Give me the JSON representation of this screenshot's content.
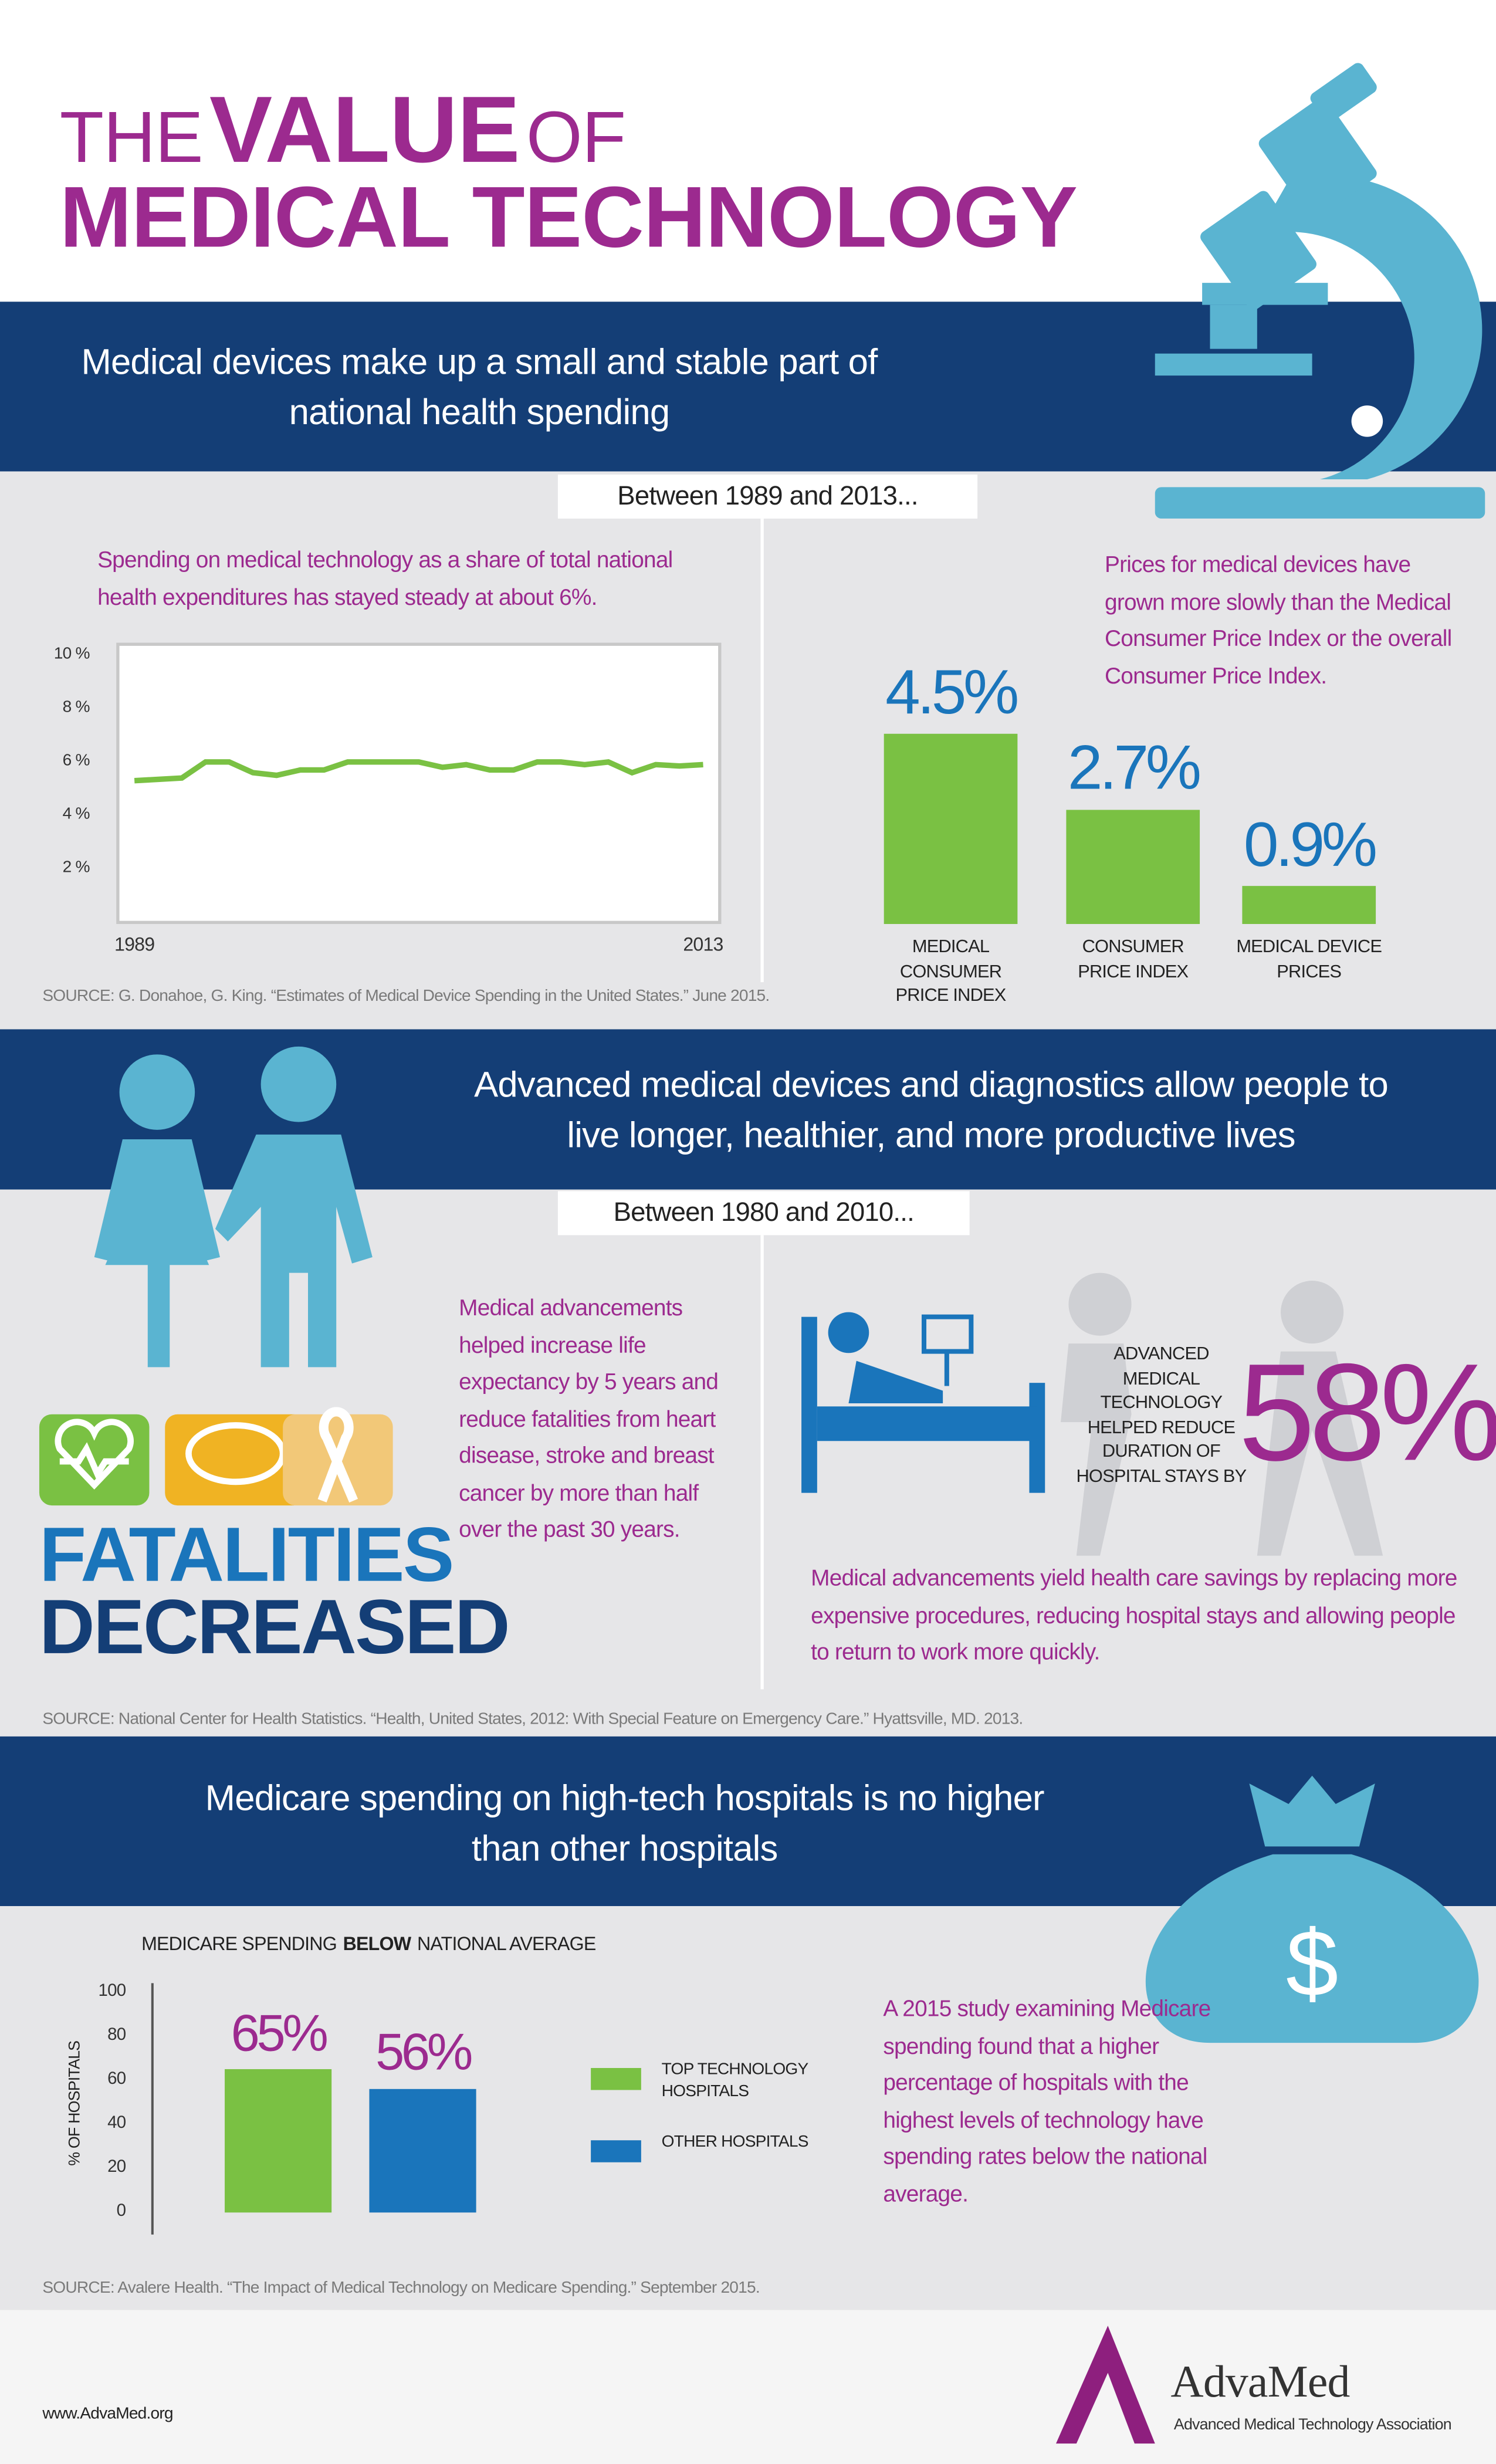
{
  "header": {
    "title_parts": [
      "THE",
      "VALUE",
      "OF"
    ],
    "title_line2": "MEDICAL TECHNOLOGY"
  },
  "sections": [
    {
      "heading": "Medical devices make up a small and stable part of national health spending",
      "period": "Between 1989 and 2013...",
      "left_text": "Spending on medical technology as a share of total national health expenditures has stayed steady at about 6%.",
      "right_text": "Prices for medical devices have grown more slowly than the Medical Consumer Price Index or the overall Consumer Price Index.",
      "source": "SOURCE: G. Donahoe, G. King. “Estimates of Medical Device Spending in the United States.” June 2015."
    },
    {
      "heading": "Advanced medical devices and diagnostics allow people to live longer, healthier, and more productive lives",
      "period": "Between 1980 and 2010...",
      "left_text": "Medical advancements helped increase life expectancy by 5 years and reduce fatalities from heart disease, stroke and breast cancer by more than half over the past 30 years.",
      "fatalities": "FATALITIES",
      "decreased": "DECREASED",
      "stat_text": "ADVANCED MEDICAL TECHNOLOGY HELPED REDUCE DURATION OF HOSPITAL STAYS BY",
      "stat_value": "58%",
      "right_text": "Medical advancements yield health care savings by replacing more expensive procedures, reducing hospital stays and allowing people to return to work more quickly.",
      "source": "SOURCE: National Center for Health Statistics. “Health, United States, 2012: With Special Feature on Emergency Care.” Hyattsville, MD. 2013."
    },
    {
      "heading": "Medicare spending on high-tech hospitals is no higher than other hospitals",
      "right_text": "A 2015 study examining Medicare spending found that a higher percentage of hospitals with the highest levels of technology have spending rates below the national average.",
      "source": "SOURCE: Avalere Health. “The Impact of Medical Technology on Medicare Spending.” September 2015."
    }
  ],
  "footer": {
    "url": "www.AdvaMed.org",
    "logo": "AdvaMed",
    "logo_sub": "Advanced Medical Technology Association"
  },
  "chart_data": [
    {
      "type": "line",
      "x": [
        1989,
        1990,
        1991,
        1992,
        1993,
        1994,
        1995,
        1996,
        1997,
        1998,
        1999,
        2000,
        2001,
        2002,
        2003,
        2004,
        2005,
        2006,
        2007,
        2008,
        2009,
        2010,
        2011,
        2012,
        2013
      ],
      "series": [
        {
          "color": "#7ac143",
          "values": [
            5.3,
            5.35,
            5.4,
            6.0,
            6.0,
            5.6,
            5.5,
            5.7,
            5.7,
            6.0,
            6.0,
            6.0,
            6.0,
            5.8,
            5.9,
            5.7,
            5.7,
            6.0,
            6.0,
            5.9,
            6.0,
            5.6,
            5.9,
            5.85,
            5.9
          ]
        }
      ],
      "xlim": [
        1988.3,
        2013.7
      ],
      "xticks": [
        1989,
        2013
      ],
      "ylim": [
        0,
        10.4
      ],
      "yticks": [
        {
          "value": 2,
          "label": "2 %"
        },
        {
          "value": 4,
          "label": "4 %"
        },
        {
          "value": 6,
          "label": "6 %"
        },
        {
          "value": 8,
          "label": "8 %"
        },
        {
          "value": 10,
          "label": "10 %"
        }
      ]
    },
    {
      "type": "bar",
      "categories": [
        "MEDICAL CONSUMER PRICE INDEX",
        "CONSUMER PRICE INDEX",
        "MEDICAL DEVICE PRICES"
      ],
      "values": [
        4.5,
        2.7,
        0.9
      ],
      "value_labels": [
        "4.5%",
        "2.7%",
        "0.9%"
      ],
      "color": "#7ac143",
      "label_color": "#1a75bb"
    },
    {
      "type": "bar",
      "title": [
        "MEDICARE SPENDING",
        "BELOW",
        "NATIONAL AVERAGE"
      ],
      "ylabel": "% OF HOSPITALS",
      "ylim": [
        -10,
        104
      ],
      "yticks": [
        0,
        20,
        40,
        60,
        80,
        100
      ],
      "series": [
        {
          "name": "TOP TECHNOLOGY HOSPITALS",
          "color": "#7ac143",
          "values": [
            65
          ],
          "value_labels": [
            "65%"
          ]
        },
        {
          "name": "OTHER HOSPITALS",
          "color": "#1a75bb",
          "values": [
            56
          ],
          "value_labels": [
            "56%"
          ]
        }
      ]
    }
  ]
}
